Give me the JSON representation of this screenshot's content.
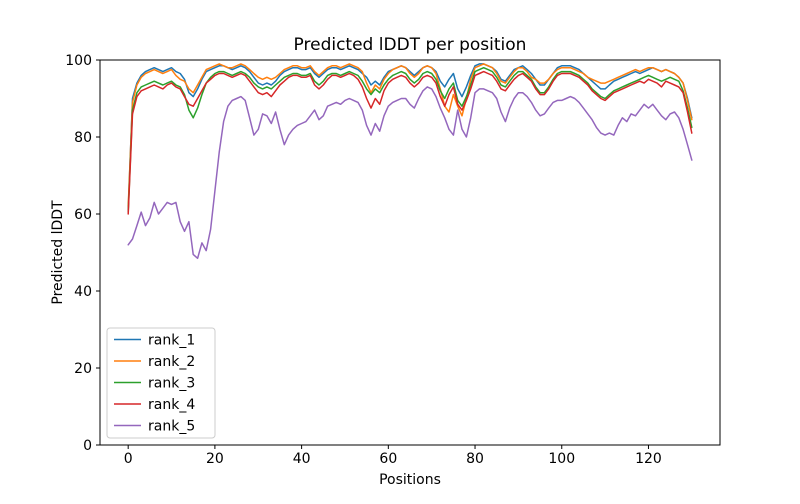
{
  "chart_data": {
    "type": "line",
    "title": "Predicted lDDT per position",
    "xlabel": "Positions",
    "ylabel": "Predicted lDDT",
    "xlim": [
      -6.5,
      136.5
    ],
    "ylim": [
      0,
      100
    ],
    "x_ticks": [
      0,
      20,
      40,
      60,
      80,
      100,
      120
    ],
    "y_ticks": [
      0,
      20,
      40,
      60,
      80,
      100
    ],
    "grid": false,
    "legend_position": "lower left",
    "background_color": "#ffffff",
    "axis_color": "#000000",
    "x": [
      0,
      1,
      2,
      3,
      4,
      5,
      6,
      7,
      8,
      9,
      10,
      11,
      12,
      13,
      14,
      15,
      16,
      17,
      18,
      19,
      20,
      21,
      22,
      23,
      24,
      25,
      26,
      27,
      28,
      29,
      30,
      31,
      32,
      33,
      34,
      35,
      36,
      37,
      38,
      39,
      40,
      41,
      42,
      43,
      44,
      45,
      46,
      47,
      48,
      49,
      50,
      51,
      52,
      53,
      54,
      55,
      56,
      57,
      58,
      59,
      60,
      61,
      62,
      63,
      64,
      65,
      66,
      67,
      68,
      69,
      70,
      71,
      72,
      73,
      74,
      75,
      76,
      77,
      78,
      79,
      80,
      81,
      82,
      83,
      84,
      85,
      86,
      87,
      88,
      89,
      90,
      91,
      92,
      93,
      94,
      95,
      96,
      97,
      98,
      99,
      100,
      101,
      102,
      103,
      104,
      105,
      106,
      107,
      108,
      109,
      110,
      111,
      112,
      113,
      114,
      115,
      116,
      117,
      118,
      119,
      120,
      121,
      122,
      123,
      124,
      125,
      126,
      127,
      128,
      129,
      130
    ],
    "series": [
      {
        "name": "rank_1",
        "color": "#1f77b4",
        "values": [
          61,
          90,
          94,
          96,
          97,
          97.5,
          98,
          97.5,
          97,
          97.5,
          98,
          97,
          96.5,
          95,
          91.5,
          90.5,
          92.5,
          95,
          97,
          97.5,
          98,
          98.5,
          98.5,
          98,
          97.5,
          98,
          98.5,
          98,
          97,
          95.5,
          94,
          93.5,
          94,
          93.5,
          94.5,
          96,
          97,
          97.5,
          98,
          98,
          97.5,
          97.5,
          98,
          96.5,
          95.5,
          96.5,
          97.5,
          98,
          98,
          97.5,
          98,
          98.5,
          98,
          97.5,
          96.5,
          95.5,
          93.5,
          94.5,
          93.5,
          95.5,
          97,
          97.5,
          98,
          98.5,
          98,
          97,
          96,
          97,
          98,
          98.5,
          98,
          97,
          94.5,
          93,
          95,
          96.5,
          92.5,
          90.5,
          93,
          96,
          98.5,
          99,
          99,
          98.5,
          98,
          97,
          95,
          94.5,
          96,
          97.5,
          98,
          98.5,
          97.5,
          96.5,
          95,
          93.5,
          93.5,
          95,
          96.5,
          98,
          98.5,
          98.5,
          98.5,
          98,
          97.5,
          96.5,
          95.5,
          94.5,
          93.5,
          92.5,
          92.5,
          93.5,
          94.5,
          95,
          95.5,
          96,
          96.5,
          97,
          96.5,
          97,
          97.5,
          98,
          97.5,
          97,
          97.5,
          97,
          96.5,
          95.5,
          94,
          90,
          85
        ]
      },
      {
        "name": "rank_2",
        "color": "#ff7f0e",
        "values": [
          62,
          89,
          93.5,
          95.5,
          96.5,
          97,
          97.5,
          97,
          96.5,
          97,
          97.5,
          96,
          95,
          94.5,
          92.5,
          91.5,
          93.5,
          95.5,
          97.5,
          98,
          98.5,
          99,
          98.5,
          98,
          98,
          98.5,
          99,
          98.5,
          97.5,
          96.5,
          95.5,
          95,
          95.5,
          95,
          95.5,
          96.5,
          97.5,
          98,
          98.5,
          98.5,
          98,
          98,
          98.5,
          97,
          96,
          97,
          98,
          98.5,
          98.5,
          98,
          98.5,
          99,
          98.5,
          98,
          97,
          94,
          91.5,
          93.5,
          92.5,
          95,
          96.5,
          97.5,
          98,
          98.5,
          98,
          96.5,
          95.5,
          96.5,
          98,
          98.5,
          98,
          96.5,
          92.5,
          88,
          86.5,
          91,
          88,
          85.5,
          90,
          95,
          98,
          98.5,
          99,
          98.5,
          98,
          96.5,
          94.5,
          94,
          95.5,
          97,
          98,
          98,
          97,
          95.5,
          95,
          94,
          94,
          95,
          96.5,
          97.5,
          98,
          98,
          98,
          97.5,
          97,
          96.5,
          95.5,
          95,
          94.5,
          94,
          94,
          94.5,
          95,
          95.5,
          96,
          96.5,
          97,
          97.5,
          97,
          97.5,
          98,
          98,
          97.5,
          97,
          97.5,
          97,
          96.5,
          95.5,
          94,
          89.5,
          84.5
        ]
      },
      {
        "name": "rank_3",
        "color": "#2ca02c",
        "values": [
          60.5,
          87,
          91.5,
          93,
          93.5,
          94,
          94.5,
          94,
          93.5,
          94,
          94.5,
          93.5,
          93,
          91,
          87,
          85,
          87.5,
          91,
          94,
          95.5,
          96.5,
          97,
          97,
          96.5,
          96,
          96.5,
          97,
          96.5,
          95.5,
          94,
          93,
          92.5,
          93,
          92.5,
          93.5,
          94.5,
          95.5,
          96,
          96.5,
          96.5,
          96,
          96,
          96.5,
          94.5,
          93.5,
          94.5,
          96,
          96.5,
          96.5,
          96,
          96.5,
          97,
          96.5,
          96,
          94.5,
          92.5,
          91,
          92.5,
          91.5,
          93.5,
          95,
          96,
          96.5,
          97,
          96.5,
          95,
          94,
          95,
          96.5,
          97,
          96.5,
          95,
          92,
          90,
          92.5,
          94,
          89.5,
          88,
          90.5,
          93.5,
          97,
          97.5,
          98,
          97.5,
          97,
          95.5,
          93.5,
          93,
          94.5,
          96,
          97,
          97,
          96,
          95,
          93,
          91.5,
          91.5,
          93,
          95,
          96.5,
          97,
          97,
          97,
          96.5,
          96,
          95,
          94,
          92.5,
          91.5,
          90.5,
          90,
          91,
          92,
          92.5,
          93,
          93.5,
          94,
          94.5,
          95,
          95.5,
          96,
          95.5,
          95,
          94.5,
          95,
          95.5,
          95,
          94.5,
          92,
          87.5,
          82.5
        ]
      },
      {
        "name": "rank_4",
        "color": "#d62728",
        "values": [
          60,
          86,
          90.5,
          92,
          92.5,
          93,
          93.5,
          93,
          92.5,
          93.5,
          94,
          93,
          92.5,
          90.5,
          88.5,
          88,
          90,
          92,
          94,
          95,
          96,
          96.5,
          96.5,
          96,
          95.5,
          96,
          96.5,
          96,
          94.5,
          93,
          91.5,
          91,
          91.5,
          90.5,
          92,
          93.5,
          94.5,
          95.5,
          96,
          96,
          95.5,
          95.5,
          96,
          93.5,
          92.5,
          93.5,
          95,
          96,
          96,
          95.5,
          96,
          96.5,
          96,
          95,
          93,
          90,
          87.5,
          90,
          88.5,
          92,
          94,
          95,
          95.5,
          96,
          95.5,
          94,
          93,
          94,
          95.5,
          96,
          95.5,
          94,
          90.5,
          88,
          91,
          93,
          88.5,
          87,
          89.5,
          92.5,
          96,
          96.5,
          97,
          96.5,
          96,
          94.5,
          92.5,
          92,
          93.5,
          95,
          96,
          96.5,
          95.5,
          94.5,
          92.5,
          91,
          91,
          92.5,
          94.5,
          96,
          96.5,
          96.5,
          96.5,
          96,
          95.5,
          94.5,
          93.5,
          92,
          91,
          90,
          89.5,
          90.5,
          91.5,
          92,
          92.5,
          93,
          93.5,
          94,
          94.5,
          94,
          95,
          94.5,
          94,
          93,
          94.5,
          94,
          93.5,
          93,
          91.5,
          86.5,
          81
        ]
      },
      {
        "name": "rank_5",
        "color": "#9467bd",
        "values": [
          52,
          53.5,
          57,
          60.5,
          57,
          59,
          63,
          60,
          61.5,
          63,
          62.5,
          63,
          58,
          55.5,
          58,
          49.5,
          48.5,
          52.5,
          50.5,
          56,
          66,
          76,
          84,
          88,
          89.5,
          90,
          90.5,
          89.5,
          85,
          80.5,
          82,
          86,
          85.5,
          83.5,
          86.5,
          82,
          78,
          80.5,
          82,
          83,
          83.5,
          84,
          85.5,
          87,
          84.5,
          85.5,
          88,
          88.5,
          89,
          88.5,
          89.5,
          90,
          89.5,
          89,
          87,
          83,
          80.5,
          83.5,
          81.5,
          85.5,
          88,
          89,
          89.5,
          90,
          90,
          88.5,
          87.5,
          90,
          92,
          93,
          92.5,
          90.5,
          87.5,
          85,
          82,
          80.5,
          87,
          82,
          80,
          85,
          91.5,
          92.5,
          92.5,
          92,
          91.5,
          90,
          86.5,
          84,
          87.5,
          90,
          91.5,
          91.5,
          90.5,
          89,
          87,
          85.5,
          86,
          87.5,
          89,
          89.5,
          89.5,
          90,
          90.5,
          90,
          89,
          87.5,
          86,
          84.5,
          82.5,
          81,
          80.5,
          81,
          80.5,
          83,
          85,
          84,
          86,
          85.5,
          87,
          88.5,
          87.5,
          88.5,
          87,
          85.5,
          84.5,
          86,
          86.5,
          85,
          82,
          78,
          74
        ]
      }
    ]
  }
}
